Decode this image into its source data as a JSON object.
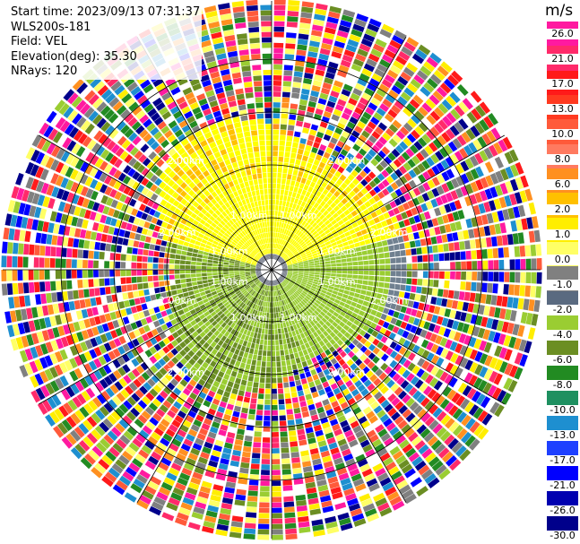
{
  "info": {
    "start_time": "Start time: 2023/09/13 07:31:37",
    "instrument": "WLS200s-181",
    "field": "Field: VEL",
    "elevation": "Elevation(deg): 35.30",
    "nrays": "NRays: 120"
  },
  "colorbar": {
    "unit": "m/s",
    "labels": [
      "26.0",
      "21.0",
      "17.0",
      "13.0",
      "10.0",
      "8.0",
      "6.0",
      "2.0",
      "1.0",
      "0.0",
      "-1.0",
      "-2.0",
      "-4.0",
      "-6.0",
      "-8.0",
      "-10.0",
      "-13.0",
      "-17.0",
      "-21.0",
      "-26.0",
      "-30.0"
    ],
    "colors": [
      "#ff1aa0",
      "#ff2a6a",
      "#ff1a1a",
      "#ff3a20",
      "#ff5a3a",
      "#ff7a60",
      "#ff9020",
      "#ffc000",
      "#ffee00",
      "#ffff66",
      "#808080",
      "#5a6a80",
      "#9acd32",
      "#6b8e23",
      "#228b22",
      "#1e9060",
      "#1e8fd0",
      "#1e40ff",
      "#0000ff",
      "#0000b0",
      "#00008b"
    ]
  },
  "range_labels": [
    "1.00km",
    "2.00km",
    "1.00km",
    "2.00km",
    "1.00km",
    "2.00km",
    "1.00km",
    "2.00km",
    "1.00km",
    "2.00km",
    "1.00km",
    "2.00km",
    "1.00km",
    "2.00km",
    "1.00km",
    "2.00km"
  ]
}
